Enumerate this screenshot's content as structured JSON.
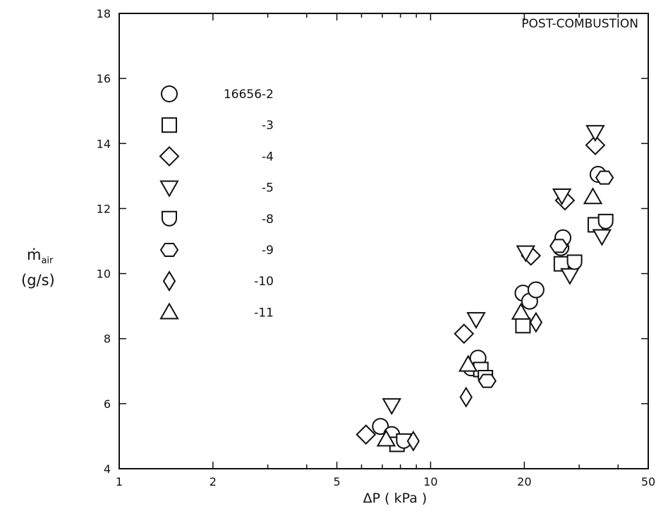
{
  "chart_data": {
    "type": "scatter",
    "title": "POST-COMBUSTION",
    "xlabel": "ΔP ( kPa )",
    "ylabel_main": "ṁ",
    "ylabel_sub": "air",
    "ylabel_units": "(g/s)",
    "x_scale": "log",
    "xlim": [
      1,
      50
    ],
    "ylim": [
      4,
      18
    ],
    "x_ticks": [
      1,
      2,
      5,
      10,
      20,
      50
    ],
    "x_tick_labels": [
      "1",
      "2",
      "5",
      "10",
      "20",
      "50"
    ],
    "y_ticks": [
      4,
      6,
      8,
      10,
      12,
      14,
      16,
      18
    ],
    "y_tick_labels": [
      "4",
      "6",
      "8",
      "10",
      "12",
      "14",
      "16",
      "18"
    ],
    "grid": false,
    "legend_position": "upper-left",
    "series": [
      {
        "name": "16656-2",
        "marker": "circle",
        "points": [
          [
            6.9,
            5.3
          ],
          [
            7.5,
            5.05
          ],
          [
            13.5,
            7.1
          ],
          [
            14.2,
            7.4
          ],
          [
            19.8,
            9.4
          ],
          [
            20.8,
            9.15
          ],
          [
            21.8,
            9.5
          ],
          [
            26.2,
            10.8
          ],
          [
            26.6,
            11.1
          ],
          [
            34.5,
            13.05
          ]
        ]
      },
      {
        "name": "-3",
        "marker": "square",
        "points": [
          [
            7.8,
            4.75
          ],
          [
            14.5,
            7.05
          ],
          [
            19.8,
            8.4
          ],
          [
            26.3,
            10.3
          ],
          [
            33.8,
            11.5
          ]
        ]
      },
      {
        "name": "-4",
        "marker": "diamond",
        "points": [
          [
            6.2,
            5.05
          ],
          [
            12.8,
            8.15
          ],
          [
            21.0,
            10.55
          ],
          [
            27.0,
            12.25
          ],
          [
            33.8,
            13.95
          ]
        ]
      },
      {
        "name": "-5",
        "marker": "triangle-down",
        "points": [
          [
            7.5,
            5.95
          ],
          [
            14.0,
            8.6
          ],
          [
            20.2,
            10.65
          ],
          [
            26.4,
            12.4
          ],
          [
            33.8,
            14.35
          ],
          [
            28.0,
            9.95
          ],
          [
            35.5,
            11.15
          ]
        ]
      },
      {
        "name": "-8",
        "marker": "shield",
        "points": [
          [
            8.2,
            4.85
          ],
          [
            15.0,
            6.8
          ],
          [
            29.0,
            10.35
          ],
          [
            36.5,
            11.6
          ]
        ]
      },
      {
        "name": "-9",
        "marker": "hexagon",
        "points": [
          [
            15.2,
            6.7
          ],
          [
            25.8,
            10.85
          ],
          [
            36.2,
            12.95
          ]
        ]
      },
      {
        "name": "-10",
        "marker": "thin-diamond",
        "points": [
          [
            8.8,
            4.85
          ],
          [
            13.0,
            6.2
          ],
          [
            21.8,
            8.5
          ]
        ]
      },
      {
        "name": "-11",
        "marker": "triangle-up",
        "points": [
          [
            7.2,
            4.9
          ],
          [
            13.2,
            7.2
          ],
          [
            19.5,
            8.8
          ],
          [
            33.2,
            12.35
          ]
        ]
      }
    ]
  }
}
